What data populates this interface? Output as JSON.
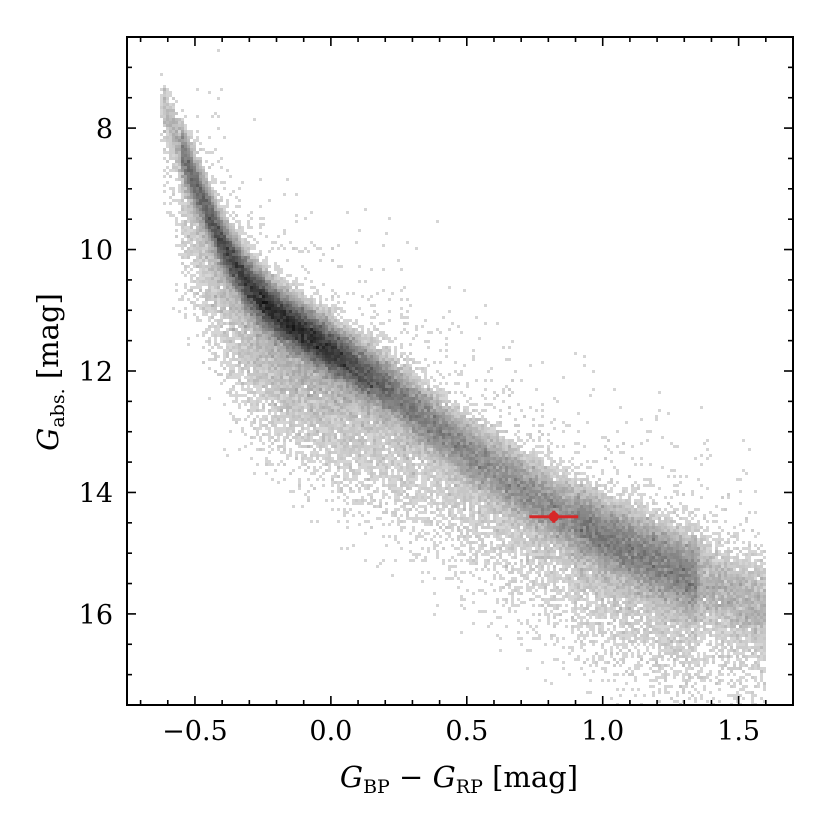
{
  "chart_data": {
    "type": "scatter",
    "subtype": "2d-density-histogram",
    "xlabel": {
      "base": "G",
      "sub1": "BP",
      "minus": " − ",
      "sub2": "RP",
      "unit": " [mag]"
    },
    "ylabel": {
      "base": "G",
      "sub": "abs.",
      "unit": " [mag]"
    },
    "xlim": [
      -0.75,
      1.7
    ],
    "ylim": [
      17.5,
      6.5
    ],
    "y_inverted": true,
    "x_ticks": [
      -0.5,
      0.0,
      0.5,
      1.0,
      1.5
    ],
    "x_tick_labels": [
      "−0.5",
      "0.0",
      "0.5",
      "1.0",
      "1.5"
    ],
    "y_ticks": [
      8,
      10,
      12,
      14,
      16
    ],
    "y_tick_labels": [
      "8",
      "10",
      "12",
      "14",
      "16"
    ],
    "x_minor_step": 0.1,
    "y_minor_step": 0.5,
    "grid": false,
    "colormap": "greys",
    "sequence_ridge": {
      "x": [
        -0.6,
        -0.5,
        -0.4,
        -0.3,
        -0.2,
        -0.1,
        0.0,
        0.1,
        0.2,
        0.3,
        0.4,
        0.5,
        0.6,
        0.7,
        0.8,
        0.9,
        1.0,
        1.1,
        1.2,
        1.3,
        1.4,
        1.5
      ],
      "y": [
        7.8,
        8.9,
        9.9,
        10.6,
        11.05,
        11.35,
        11.65,
        11.95,
        12.25,
        12.6,
        12.95,
        13.3,
        13.6,
        13.9,
        14.2,
        14.45,
        14.7,
        14.9,
        15.1,
        15.3,
        15.5,
        15.7
      ]
    },
    "highlight": {
      "x": 0.82,
      "y": 14.4,
      "x_err": 0.09,
      "y_err": 0.1,
      "color": "#d62728"
    }
  }
}
